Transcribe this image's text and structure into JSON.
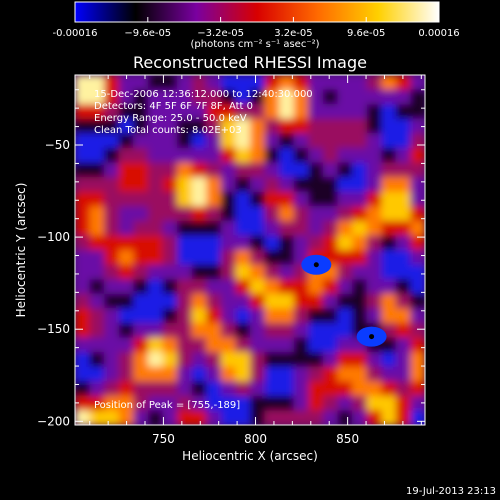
{
  "chart_data": {
    "type": "heatmap",
    "title": "Reconstructed RHESSI Image",
    "xlabel": "Heliocentric X (arcsec)",
    "ylabel": "Heliocentric Y (arcsec)",
    "xlim": [
      702,
      892
    ],
    "ylim": [
      -202,
      -12
    ],
    "xticks": [
      750,
      800,
      850
    ],
    "yticks": [
      -50,
      -100,
      -150,
      -200
    ],
    "colorbar": {
      "range": [
        -0.00016,
        0.00016
      ],
      "ticks": [
        -0.00016,
        -9.6e-05,
        -3.2e-05,
        3.2e-05,
        9.6e-05,
        0.00016
      ],
      "tick_labels": [
        "-0.00016",
        "−9.6e-05",
        "−3.2e-05",
        "3.2e-05",
        "9.6e-05",
        "0.00016"
      ],
      "unit_label": "(photons cm⁻² s⁻¹ asec⁻²)",
      "colormap": [
        "#0000ff",
        "#000000",
        "#7a00a0",
        "#d80000",
        "#ff6a00",
        "#ffd000",
        "#ffffff"
      ]
    },
    "annotations": [
      "15-Dec-2006 12:36:12.000 to 12:40:30.000",
      "Detectors: 4F 5F 6F 7F 8F, Att 0",
      "Energy Range: 25.0 - 50.0 keV",
      "Clean     Total counts: 8.02E+03"
    ],
    "position_label": "Position of Peak = [755,-189]",
    "peak": [
      755,
      -189
    ],
    "markers": [
      [
        833,
        -115
      ],
      [
        863,
        -154
      ]
    ],
    "footer_date": "19-Jul-2013 23:13"
  }
}
